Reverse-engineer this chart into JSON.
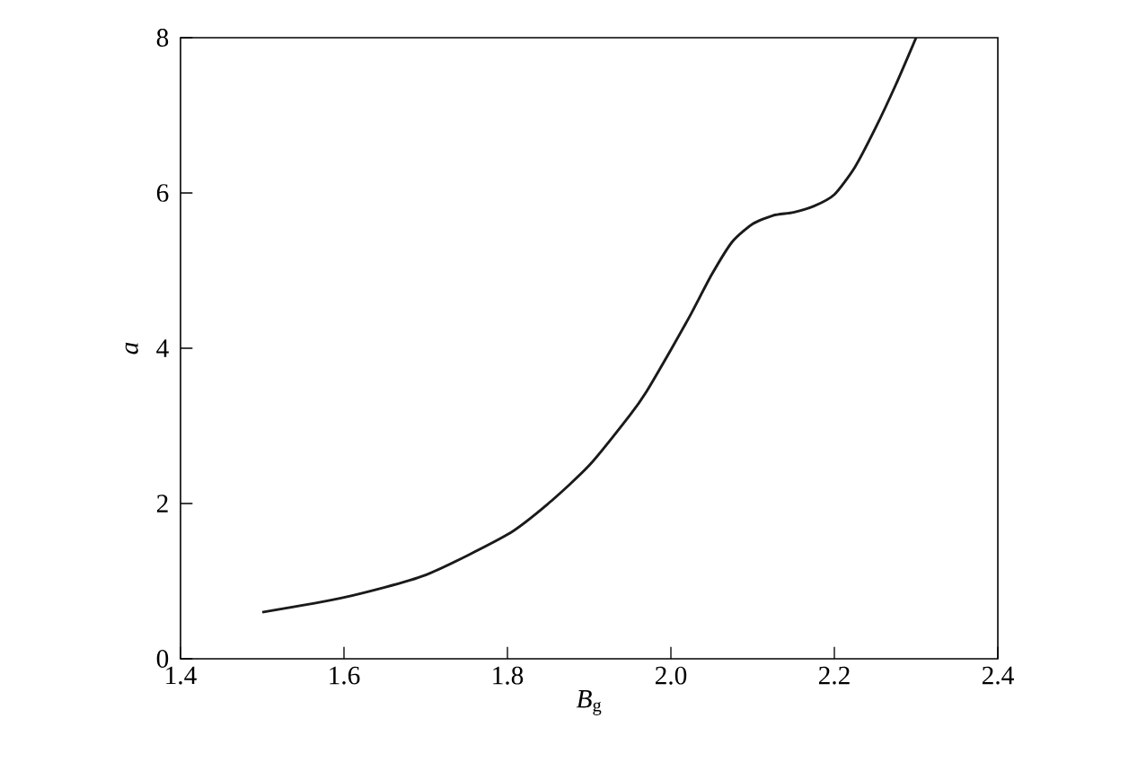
{
  "chart_data": {
    "type": "line",
    "xlabel": "*B*$_{g}$",
    "ylabel": "a",
    "x": [
      1.5,
      1.6,
      1.7,
      1.8,
      1.85,
      1.9,
      1.95,
      1.97,
      2.0,
      2.025,
      2.05,
      2.075,
      2.1,
      2.125,
      2.15,
      2.175,
      2.2,
      2.225,
      2.25,
      2.275,
      2.3
    ],
    "series": [
      {
        "color": "#1a1a1a",
        "values": [
          0.6,
          0.79,
          1.08,
          1.6,
          2.0,
          2.49,
          3.14,
          3.44,
          3.98,
          4.45,
          4.95,
          5.37,
          5.6,
          5.71,
          5.75,
          5.83,
          5.98,
          6.33,
          6.83,
          7.39,
          8.0
        ]
      }
    ],
    "xlim": [
      1.4,
      2.4
    ],
    "ylim": [
      0,
      8
    ],
    "xticks": [
      1.4,
      1.6,
      1.8,
      {
        "value": 2,
        "label": "2.0"
      },
      2.2,
      2.4
    ],
    "yticks": [
      0,
      2,
      4,
      6,
      8
    ],
    "grid": false
  }
}
